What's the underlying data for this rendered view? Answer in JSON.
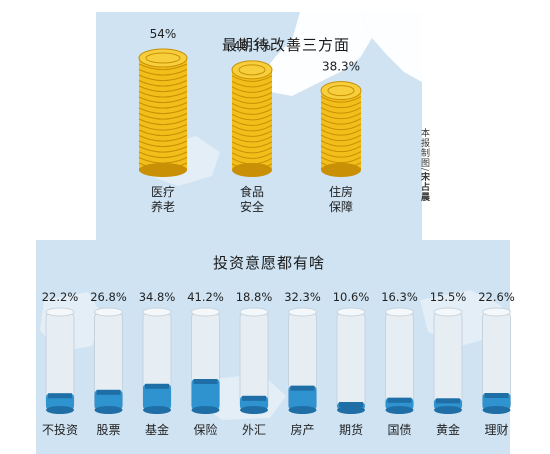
{
  "colors": {
    "map_bg": "#cfe3f3",
    "land": "#ffffff",
    "coin_gold": "#f2bf1a",
    "coin_dark": "#c98f05",
    "liquid": "#2f93cf",
    "glass": "#e7eef3"
  },
  "credit": {
    "text": "本报制图/",
    "name": "宋占晨"
  },
  "chart_data": [
    {
      "type": "bar",
      "title": "最期待改善三方面",
      "categories": [
        "医疗养老",
        "食品安全",
        "住房保障"
      ],
      "category_lines": [
        [
          "医疗",
          "养老"
        ],
        [
          "食品",
          "安全"
        ],
        [
          "住房",
          "保障"
        ]
      ],
      "values": [
        54,
        48.3,
        38.3
      ],
      "value_labels": [
        "54%",
        "48.3%",
        "38.3%"
      ],
      "unit": "%"
    },
    {
      "type": "bar",
      "title": "投资意愿都有啥",
      "categories": [
        "不投资",
        "股票",
        "基金",
        "保险",
        "外汇",
        "房产",
        "期货",
        "国债",
        "黄金",
        "理财"
      ],
      "values": [
        22.2,
        26.8,
        34.8,
        41.2,
        18.8,
        32.3,
        10.6,
        16.3,
        15.5,
        22.6
      ],
      "value_labels": [
        "22.2%",
        "26.8%",
        "34.8%",
        "41.2%",
        "18.8%",
        "32.3%",
        "10.6%",
        "16.3%",
        "15.5%",
        "22.6%"
      ],
      "unit": "%"
    }
  ]
}
